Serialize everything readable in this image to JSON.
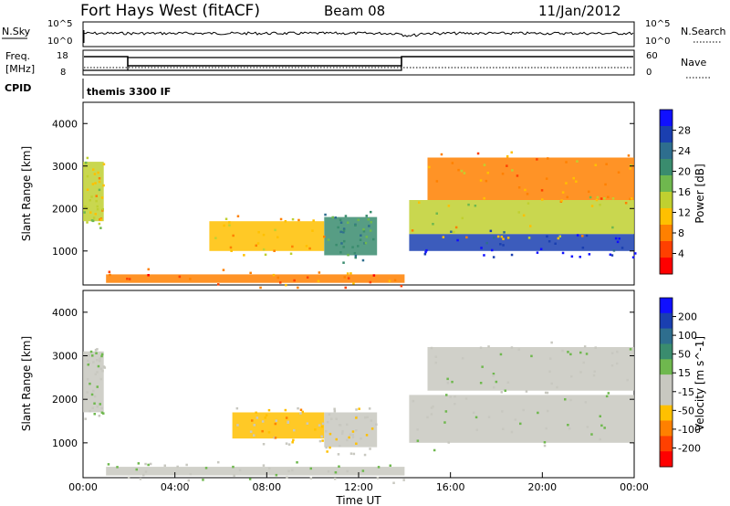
{
  "header": {
    "station": "Fort Hays West (fitACF)",
    "beam": "Beam 08",
    "date": "11/Jan/2012"
  },
  "strip_nsky": {
    "left_label": "N.Sky",
    "right_label": "N.Search",
    "left_ticks": [
      "10^5",
      "10^0"
    ],
    "right_ticks": [
      "10^5",
      "10^0"
    ]
  },
  "strip_freq": {
    "left_label_1": "Freq.",
    "left_label_2": "[MHz]",
    "right_label": "Nave",
    "left_ticks": [
      "18",
      "8"
    ],
    "right_ticks": [
      "60",
      "0"
    ]
  },
  "cpid": {
    "label": "CPID",
    "value": "themis 3300 IF"
  },
  "colors": {
    "power_scale": [
      "#1010ff",
      "#1a3fb0",
      "#2e6e8e",
      "#3a8c6e",
      "#6fb84e",
      "#c0d030",
      "#ffc000",
      "#ff8000",
      "#ff4000",
      "#ff0000"
    ],
    "velocity_scale": [
      "#1010ff",
      "#1a3fb0",
      "#2e6e8e",
      "#3a8c6e",
      "#6fb84e",
      "#c8c8c0",
      "#c8c8c0",
      "#ffc000",
      "#ff8000",
      "#ff4000",
      "#ff0000"
    ]
  },
  "chart_data": [
    {
      "type": "heatmap",
      "ylabel": "Slant Range [km]",
      "colorbar_label": "Power [dB]",
      "colorbar_ticks": [
        "28",
        "24",
        "20",
        "16",
        "12",
        "8",
        "4"
      ],
      "y_ticks": [
        "4000",
        "3000",
        "2000",
        "1000"
      ],
      "ylim": [
        200,
        4500
      ],
      "xlim_hours": [
        0,
        24
      ],
      "regions": [
        {
          "start": 0.0,
          "end": 0.9,
          "range_start": 1700,
          "range_end": 3100,
          "value": 12
        },
        {
          "start": 5.5,
          "end": 10.5,
          "range_start": 1000,
          "range_end": 1700,
          "value": 10
        },
        {
          "start": 10.5,
          "end": 12.8,
          "range_start": 900,
          "range_end": 1800,
          "value": 20
        },
        {
          "start": 14.2,
          "end": 24.0,
          "range_start": 1000,
          "range_end": 1400,
          "value": 28
        },
        {
          "start": 14.2,
          "end": 24.0,
          "range_start": 1400,
          "range_end": 2200,
          "value": 12
        },
        {
          "start": 15.0,
          "end": 24.0,
          "range_start": 2200,
          "range_end": 3200,
          "value": 8
        },
        {
          "start": 1.0,
          "end": 14.0,
          "range_start": 250,
          "range_end": 450,
          "value": 6
        }
      ]
    },
    {
      "type": "heatmap",
      "ylabel": "Slant Range [km]",
      "colorbar_label": "Velocity [m s^-1]",
      "colorbar_ticks": [
        "200",
        "100",
        "50",
        "15",
        "-15",
        "-50",
        "-100",
        "-200"
      ],
      "y_ticks": [
        "4000",
        "3000",
        "2000",
        "1000"
      ],
      "ylim": [
        200,
        4500
      ],
      "xlim_hours": [
        0,
        24
      ],
      "x_ticks": [
        "00:00",
        "04:00",
        "08:00",
        "12:00",
        "16:00",
        "20:00",
        "00:00"
      ],
      "xlabel": "Time UT",
      "regions": [
        {
          "start": 0.0,
          "end": 0.9,
          "range_start": 1700,
          "range_end": 3100,
          "value": 0
        },
        {
          "start": 6.5,
          "end": 10.5,
          "range_start": 1100,
          "range_end": 1700,
          "value": -60
        },
        {
          "start": 10.5,
          "end": 12.8,
          "range_start": 900,
          "range_end": 1700,
          "value": -40
        },
        {
          "start": 14.2,
          "end": 24.0,
          "range_start": 1000,
          "range_end": 2100,
          "value": 0
        },
        {
          "start": 15.0,
          "end": 24.0,
          "range_start": 2200,
          "range_end": 3200,
          "value": 0
        },
        {
          "start": 1.0,
          "end": 14.0,
          "range_start": 250,
          "range_end": 450,
          "value": 0
        }
      ]
    }
  ]
}
